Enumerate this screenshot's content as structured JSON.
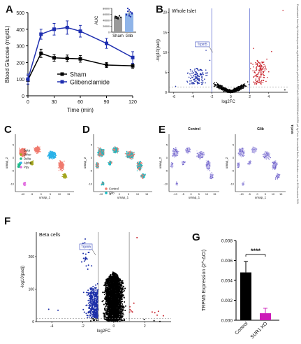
{
  "panels": {
    "A": "A",
    "B": "B",
    "C": "C",
    "D": "D",
    "E": "E",
    "F": "F",
    "G": "G"
  },
  "side_text": "Downloaded from http://diabetesjournals.org/diabetes/article-pdf/doi/10.2337/db24-0256/838168/db240256.pdf by Freie Universitaet Berlin, Bibliotheken user on 18 December 2024",
  "side_label": "Trpm5",
  "chart_data": [
    {
      "panel": "A",
      "type": "line",
      "xlabel": "Time (min)",
      "ylabel": "Blood Glucose (mg/dL)",
      "x": [
        0,
        15,
        30,
        45,
        60,
        90,
        120
      ],
      "xticks": [
        "0",
        "30",
        "60",
        "90",
        "120"
      ],
      "yticks": [
        "0",
        "100",
        "200",
        "300",
        "400",
        "500"
      ],
      "ylim": [
        0,
        500
      ],
      "series": [
        {
          "name": "Sham",
          "color": "#000000",
          "values": [
            95,
            255,
            228,
            225,
            222,
            185,
            180
          ],
          "err": [
            25,
            25,
            20,
            20,
            20,
            15,
            15
          ]
        },
        {
          "name": "Glibenclamide",
          "color": "#1f2fb0",
          "values": [
            100,
            370,
            400,
            410,
            388,
            315,
            230
          ],
          "err": [
            30,
            30,
            35,
            40,
            35,
            30,
            35
          ]
        }
      ],
      "inset": {
        "type": "bar",
        "ylabel": "AUC",
        "categories": [
          "Sham",
          "Glib"
        ],
        "values": [
          50000,
          63000
        ],
        "err": [
          3000,
          8000
        ],
        "yticks": [
          "0",
          "20000",
          "40000",
          "60000",
          "80000"
        ],
        "colors": [
          "#9a9a9a",
          "#8fb4e8"
        ],
        "sham_points": [
          48000,
          52000,
          45000,
          55000,
          50000,
          53000,
          47000,
          49000
        ],
        "glib_points": [
          58000,
          70000,
          75000,
          52000,
          65000,
          60000,
          80000,
          55000,
          68000,
          62000
        ]
      }
    },
    {
      "panel": "B",
      "type": "scatter",
      "title": "Whole Islet",
      "xlabel": "log2FC",
      "ylabel": "-log10(padj)",
      "xticks": [
        "-6",
        "-4",
        "-2",
        "0",
        "2",
        "4"
      ],
      "yticks": [
        "0",
        "5",
        "10",
        "15",
        "20"
      ],
      "xlim": [
        -6.5,
        6
      ],
      "ylim": [
        0,
        21
      ],
      "annotation": "Trpm5",
      "annotation_point": [
        -3.0,
        12.0
      ]
    },
    {
      "panel": "C",
      "type": "scatter",
      "xlabel": "umap_1",
      "ylabel": "umap_2",
      "xticks": [
        "-10",
        "-5",
        "0",
        "5",
        "10",
        "15"
      ],
      "yticks": [
        "-10",
        "-5",
        "0",
        "5"
      ],
      "legend": [
        {
          "name": "Beta",
          "color": "#f07a6e"
        },
        {
          "name": "Other",
          "color": "#a3a51d"
        },
        {
          "name": "Delta",
          "color": "#1fbf8a"
        },
        {
          "name": "Alpha",
          "color": "#2bb2e8"
        },
        {
          "name": "Ppy",
          "color": "#e26ee0"
        }
      ]
    },
    {
      "panel": "D",
      "type": "scatter",
      "xlabel": "umap_1",
      "ylabel": "umap_2",
      "xticks": [
        "-10",
        "-5",
        "0",
        "5",
        "10",
        "15"
      ],
      "yticks": [
        "-10",
        "-5",
        "0",
        "5"
      ],
      "legend": [
        {
          "name": "Control",
          "color": "#f07a6e"
        },
        {
          "name": "Glib",
          "color": "#16bcc4"
        }
      ]
    },
    {
      "panel": "E",
      "type": "scatter",
      "facets": [
        "Control",
        "Glib"
      ],
      "xlabel": "umap_1",
      "ylabel": "umap_2",
      "xticks": [
        "-10",
        "-5",
        "0",
        "5",
        "10",
        "15"
      ],
      "yticks": [
        "-10",
        "-5",
        "0",
        "5"
      ]
    },
    {
      "panel": "F",
      "type": "scatter",
      "title": "Beta cells",
      "xlabel": "log2FC",
      "ylabel": "-log10(padj)",
      "xticks": [
        "-4",
        "-2",
        "0",
        "2"
      ],
      "yticks": [
        "0",
        "100",
        "200"
      ],
      "xlim": [
        -5,
        3.7
      ],
      "ylim": [
        0,
        275
      ],
      "annotation": "Trpm5",
      "annotation_point": [
        -1.8,
        230
      ]
    },
    {
      "panel": "G",
      "type": "bar",
      "ylabel": "TRPM5 Expression (2^-ΔCt)",
      "categories": [
        "Control",
        "SUR1 KO"
      ],
      "values": [
        0.0048,
        0.0007
      ],
      "err": [
        0.0011,
        0.0005
      ],
      "colors": [
        "#000000",
        "#cc1bb8"
      ],
      "ylim": [
        0,
        0.008
      ],
      "yticks": [
        "0.000",
        "0.002",
        "0.004",
        "0.006",
        "0.008"
      ],
      "significance": "****"
    }
  ]
}
